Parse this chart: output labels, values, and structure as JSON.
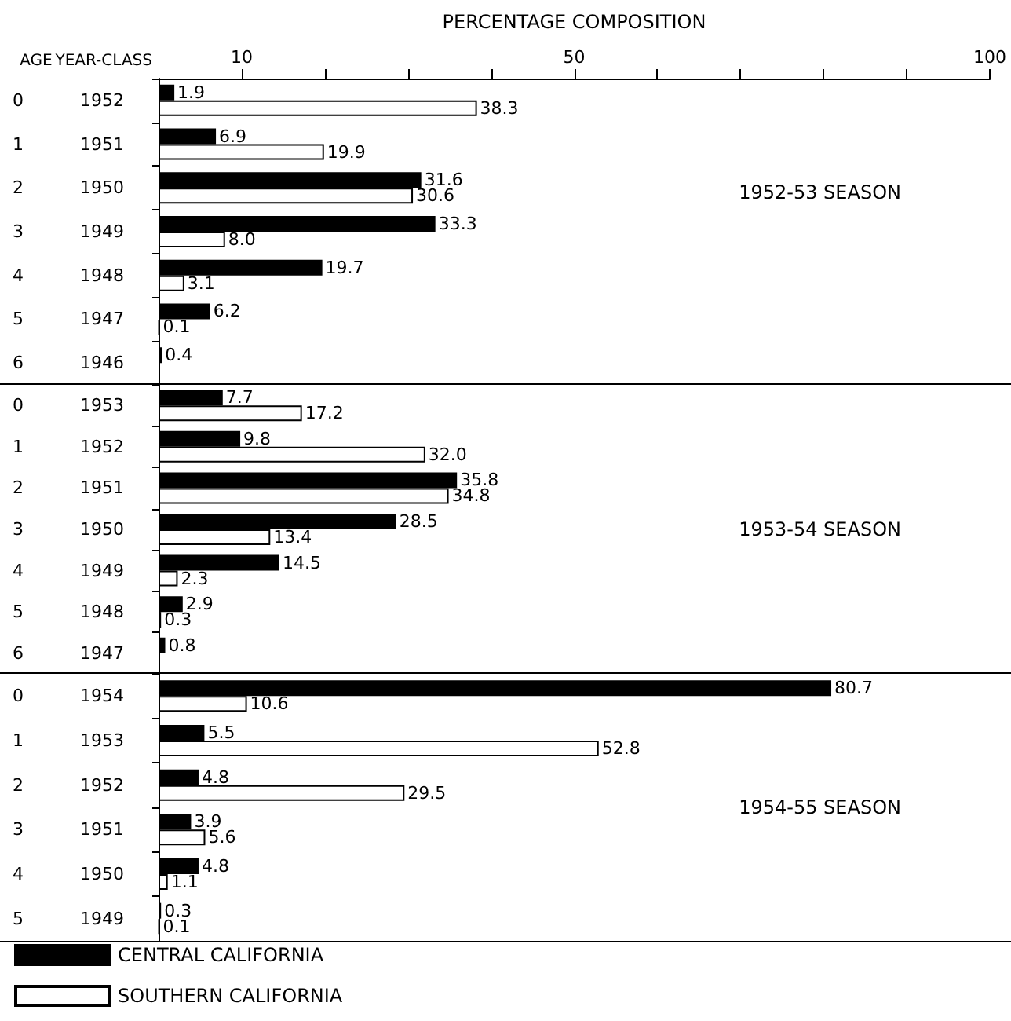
{
  "chart_data": [
    {
      "type": "bar",
      "orientation": "horizontal",
      "xlabel": "PERCENTAGE COMPOSITION",
      "ylabel": "YEAR-CLASS",
      "y2label": "AGE",
      "categories": [
        "1952",
        "1951",
        "1950",
        "1949",
        "1948",
        "1947",
        "1946"
      ],
      "y2_categories": [
        "0",
        "1",
        "2",
        "3",
        "4",
        "5",
        "6"
      ],
      "series": [
        {
          "color": "#000000",
          "values": [
            1.9,
            6.9,
            31.6,
            33.3,
            19.7,
            6.2,
            0.4
          ],
          "value_labels": [
            "1.9",
            "6.9",
            "31.6",
            "33.3",
            "19.7",
            "6.2",
            "0.4"
          ]
        },
        {
          "color": "#ffffff",
          "values": [
            38.3,
            19.9,
            30.6,
            8.0,
            3.1,
            0.1,
            null
          ],
          "value_labels": [
            "38.3",
            "19.9",
            "30.6",
            "8.0",
            "3.1",
            "0.1",
            null
          ]
        }
      ],
      "xlim": [
        0,
        100
      ],
      "xticks": [
        10,
        {
          "value": 20,
          "label": null
        },
        {
          "value": 30,
          "label": null
        },
        {
          "value": 40,
          "label": null
        },
        50,
        {
          "value": 60,
          "label": null
        },
        {
          "value": 70,
          "label": null
        },
        {
          "value": 80,
          "label": null
        },
        {
          "value": 90,
          "label": null
        },
        100
      ],
      "annotations": [
        "1952-53 SEASON"
      ],
      "grid": false,
      "legend": false
    },
    {
      "type": "bar",
      "orientation": "horizontal",
      "categories": [
        "1953",
        "1952",
        "1951",
        "1950",
        "1949",
        "1948",
        "1947"
      ],
      "y2_categories": [
        "0",
        "1",
        "2",
        "3",
        "4",
        "5",
        "6"
      ],
      "series": [
        {
          "color": "#000000",
          "values": [
            7.7,
            9.8,
            35.8,
            28.5,
            14.5,
            2.9,
            0.8
          ],
          "value_labels": [
            "7.7",
            "9.8",
            "35.8",
            "28.5",
            "14.5",
            "2.9",
            "0.8"
          ]
        },
        {
          "color": "#ffffff",
          "values": [
            17.2,
            32.0,
            34.8,
            13.4,
            2.3,
            0.3,
            null
          ],
          "value_labels": [
            "17.2",
            "32.0",
            "34.8",
            "13.4",
            "2.3",
            "0.3",
            null
          ]
        }
      ],
      "xlim": [
        0,
        100
      ],
      "tick_labels": "y",
      "annotations": [
        "1953-54 SEASON"
      ],
      "grid": false,
      "legend": false
    },
    {
      "type": "bar",
      "orientation": "horizontal",
      "categories": [
        "1954",
        "1953",
        "1952",
        "1951",
        "1950",
        "1949"
      ],
      "y2_categories": [
        "0",
        "1",
        "2",
        "3",
        "4",
        "5"
      ],
      "series": [
        {
          "name": "CENTRAL CALIFORNIA",
          "color": "#000000",
          "values": [
            80.7,
            5.5,
            4.8,
            3.9,
            4.8,
            0.3
          ],
          "value_labels": [
            "80.7",
            "5.5",
            "4.8",
            "3.9",
            "4.8",
            "0.3"
          ]
        },
        {
          "name": "SOUTHERN CALIFORNIA",
          "color": "#ffffff",
          "values": [
            10.6,
            52.8,
            29.5,
            5.6,
            1.1,
            0.1
          ],
          "value_labels": [
            "10.6",
            "52.8",
            "29.5",
            "5.6",
            "1.1",
            "0.1"
          ]
        }
      ],
      "xlim": [
        0,
        100
      ],
      "tick_labels": "y",
      "annotations": [
        "1954-55 SEASON"
      ],
      "grid": false,
      "legend": "bottom left"
    }
  ]
}
